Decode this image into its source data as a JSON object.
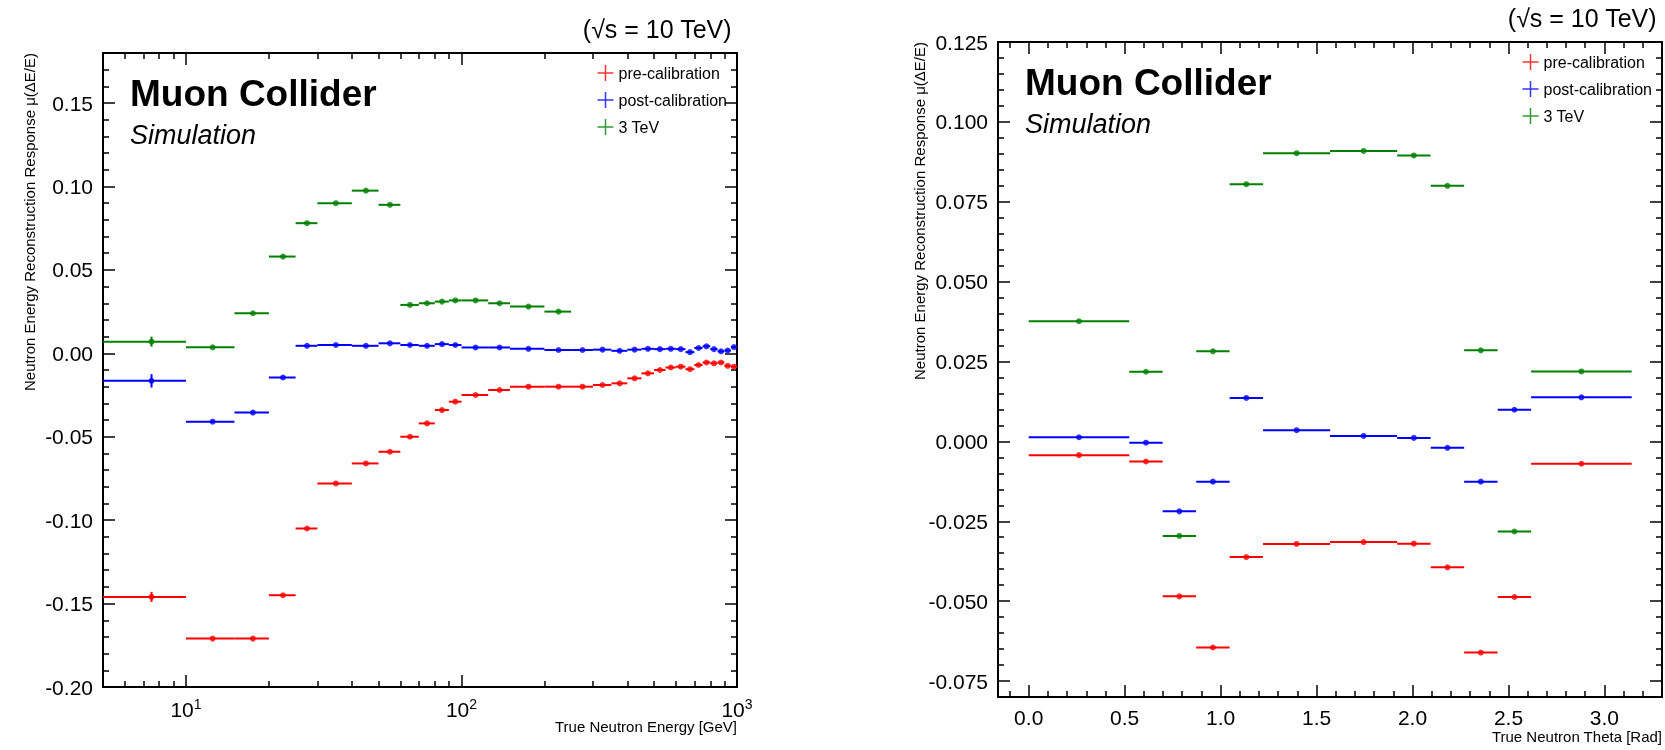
{
  "chart_data": [
    {
      "type": "scatter",
      "title": "(√s = 10 TeV)",
      "annotations": [
        "Muon Collider",
        "Simulation"
      ],
      "xlabel": "True Neutron Energy [GeV]",
      "ylabel": "Neutron Energy Reconstruction Response μ(ΔE/E)",
      "log": "x",
      "xlim": [
        5,
        1000
      ],
      "ylim": [
        -0.2,
        0.18
      ],
      "xticks": [
        {
          "value": 10,
          "label": "10$^{1}$"
        },
        {
          "value": 100,
          "label": "10$^{2}$"
        },
        {
          "value": 1000,
          "label": "10$^{3}$"
        }
      ],
      "yticks": [
        {
          "value": -0.2,
          "label": "-0.20"
        },
        -0.15,
        {
          "value": -0.1,
          "label": "-0.10"
        },
        -0.05,
        {
          "value": 0,
          "label": "0.00"
        },
        0.05,
        {
          "value": 0.1,
          "label": "0.10"
        },
        0.15
      ],
      "legend": "top right",
      "marker": "circle",
      "grid": false,
      "series": [
        {
          "name": "pre-calibration",
          "color": "#ff0000",
          "x": [
            7.5,
            12.5,
            17.5,
            22.5,
            27.5,
            35,
            45,
            55,
            65,
            75,
            85,
            95,
            112.5,
            137.5,
            175,
            225,
            275,
            325,
            375,
            425,
            475,
            525,
            575,
            625,
            675,
            725,
            775,
            825,
            875,
            925,
            975
          ],
          "values": [
            -0.146,
            -0.171,
            -0.171,
            -0.145,
            -0.105,
            -0.078,
            -0.066,
            -0.059,
            -0.05,
            -0.042,
            -0.034,
            -0.029,
            -0.025,
            -0.022,
            -0.02,
            -0.02,
            -0.02,
            -0.019,
            -0.018,
            -0.015,
            -0.012,
            -0.01,
            -0.0085,
            -0.008,
            -0.0095,
            -0.007,
            -0.0055,
            -0.006,
            -0.0055,
            -0.0075,
            -0.008
          ],
          "xerrors": [
            2.5,
            2.5,
            2.5,
            2.5,
            2.5,
            5,
            5,
            5,
            5,
            5,
            5,
            5,
            12.5,
            12.5,
            25,
            25,
            25,
            25,
            25,
            25,
            25,
            25,
            25,
            25,
            25,
            25,
            25,
            25,
            25,
            25,
            25
          ],
          "errors": [
            0.003,
            null,
            null,
            null,
            null,
            null,
            null,
            null,
            null,
            null,
            null,
            null,
            null,
            null,
            null,
            null,
            null,
            null,
            null,
            null,
            null,
            null,
            null,
            null,
            null,
            null,
            null,
            null,
            null,
            null,
            null
          ]
        },
        {
          "name": "post-calibration",
          "color": "#0000ff",
          "x": [
            7.5,
            12.5,
            17.5,
            22.5,
            27.5,
            35,
            45,
            55,
            65,
            75,
            85,
            95,
            112.5,
            137.5,
            175,
            225,
            275,
            325,
            375,
            425,
            475,
            525,
            575,
            625,
            675,
            725,
            775,
            825,
            875,
            925,
            975
          ],
          "values": [
            -0.0165,
            -0.041,
            -0.0355,
            -0.0145,
            0.0045,
            0.005,
            0.0045,
            0.006,
            0.005,
            0.0045,
            0.0055,
            0.005,
            0.0035,
            0.0035,
            0.0027,
            0.002,
            0.002,
            0.0022,
            0.0015,
            0.0022,
            0.0027,
            0.0025,
            0.0027,
            0.0025,
            0.0007,
            0.0032,
            0.0042,
            0.0025,
            0.0012,
            0.0017,
            0.0037
          ],
          "xerrors": [
            2.5,
            2.5,
            2.5,
            2.5,
            2.5,
            5,
            5,
            5,
            5,
            5,
            5,
            5,
            12.5,
            12.5,
            25,
            25,
            25,
            25,
            25,
            25,
            25,
            25,
            25,
            25,
            25,
            25,
            25,
            25,
            25,
            25,
            25
          ],
          "errors": [
            0.004,
            null,
            null,
            null,
            null,
            null,
            null,
            null,
            null,
            null,
            null,
            null,
            null,
            null,
            null,
            null,
            null,
            null,
            null,
            null,
            null,
            null,
            null,
            null,
            null,
            null,
            null,
            null,
            null,
            null,
            null
          ]
        },
        {
          "name": "3 TeV",
          "color": "#008000",
          "x": [
            7.5,
            12.5,
            17.5,
            22.5,
            27.5,
            35,
            45,
            55,
            65,
            75,
            85,
            95,
            112.5,
            137.5,
            175,
            225
          ],
          "values": [
            0.007,
            0.0036,
            0.024,
            0.058,
            0.078,
            0.09,
            0.0975,
            0.089,
            0.029,
            0.03,
            0.031,
            0.0317,
            0.0317,
            0.03,
            0.028,
            0.025
          ],
          "xerrors": [
            2.5,
            2.5,
            2.5,
            2.5,
            2.5,
            5,
            5,
            5,
            5,
            5,
            5,
            5,
            12.5,
            12.5,
            25,
            25
          ],
          "errors": [
            0.003,
            null,
            null,
            null,
            null,
            null,
            null,
            null,
            null,
            null,
            null,
            null,
            null,
            null,
            null,
            null
          ]
        }
      ]
    },
    {
      "type": "scatter",
      "title": "(√s = 10 TeV)",
      "annotations": [
        "Muon Collider",
        "Simulation"
      ],
      "xlabel": "True Neutron Theta [Rad]",
      "ylabel": "Neutron Energy Reconstruction Response μ(ΔE/E)",
      "xlim": [
        -0.16,
        3.3
      ],
      "ylim": [
        -0.08,
        0.125
      ],
      "xticks": [
        {
          "value": 0,
          "label": "0.0"
        },
        0.5,
        {
          "value": 1,
          "label": "1.0"
        },
        1.5,
        {
          "value": 2,
          "label": "2.0"
        },
        2.5,
        {
          "value": 3,
          "label": "3.0"
        }
      ],
      "yticks": [
        -0.075,
        {
          "value": -0.05,
          "label": "-0.050"
        },
        -0.025,
        {
          "value": 0,
          "label": "0.000"
        },
        0.025,
        {
          "value": 0.05,
          "label": "0.050"
        },
        0.075,
        {
          "value": 0.1,
          "label": "0.100"
        },
        0.125
      ],
      "legend": "top right",
      "marker": "circle",
      "grid": false,
      "series": [
        {
          "name": "pre-calibration",
          "color": "#ff0000",
          "x": [
            0.262,
            0.611,
            0.785,
            0.96,
            1.134,
            1.396,
            1.745,
            2.007,
            2.182,
            2.356,
            2.531,
            2.88
          ],
          "values": [
            -0.0043,
            -0.0063,
            -0.0485,
            -0.0645,
            -0.0362,
            -0.0321,
            -0.0315,
            -0.032,
            -0.0394,
            -0.0661,
            -0.0487,
            -0.007
          ],
          "xerrors": [
            0.262,
            0.087,
            0.087,
            0.087,
            0.087,
            0.175,
            0.175,
            0.087,
            0.087,
            0.087,
            0.087,
            0.262
          ]
        },
        {
          "name": "post-calibration",
          "color": "#0000ff",
          "x": [
            0.262,
            0.611,
            0.785,
            0.96,
            1.134,
            1.396,
            1.745,
            2.007,
            2.182,
            2.356,
            2.531,
            2.88
          ],
          "values": [
            0.0013,
            -0.0004,
            -0.0219,
            -0.0126,
            0.0136,
            0.0035,
            0.0017,
            0.0011,
            -0.002,
            -0.0126,
            0.0099,
            0.0138
          ],
          "xerrors": [
            0.262,
            0.087,
            0.087,
            0.087,
            0.087,
            0.175,
            0.175,
            0.087,
            0.087,
            0.087,
            0.087,
            0.262
          ]
        },
        {
          "name": "3 TeV",
          "color": "#008000",
          "x": [
            0.262,
            0.611,
            0.785,
            0.96,
            1.134,
            1.396,
            1.745,
            2.007,
            2.182,
            2.356,
            2.531,
            2.88
          ],
          "values": [
            0.0376,
            0.0218,
            -0.0296,
            0.0282,
            0.0805,
            0.0902,
            0.0909,
            0.0895,
            0.08,
            0.0285,
            -0.0282,
            0.0219
          ],
          "xerrors": [
            0.262,
            0.087,
            0.087,
            0.087,
            0.087,
            0.175,
            0.175,
            0.087,
            0.087,
            0.087,
            0.087,
            0.262
          ]
        }
      ]
    }
  ]
}
